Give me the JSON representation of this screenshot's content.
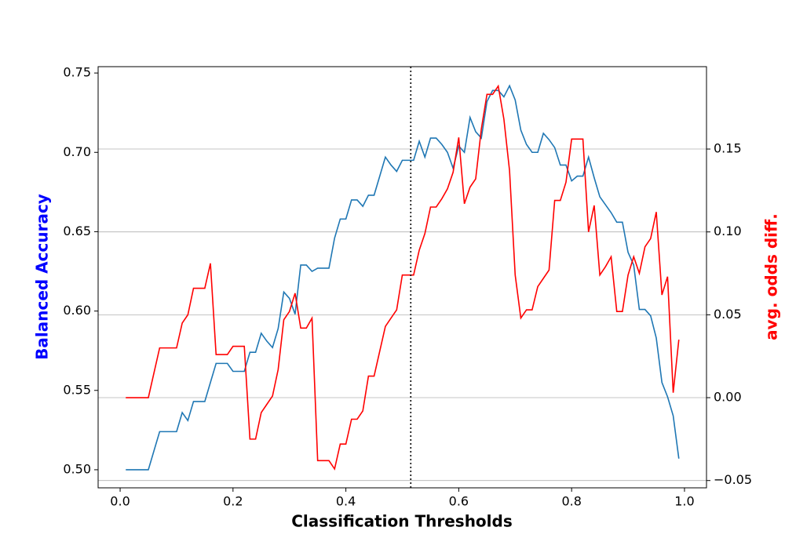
{
  "chart_data": {
    "type": "line",
    "xlabel": "Classification Thresholds",
    "ylabel": "Balanced Accuracy",
    "ylabel_color": "#0000ff",
    "y2label": "avg. odds diff.",
    "y2label_color": "#ff0000",
    "x": [
      0.01,
      0.02,
      0.03,
      0.04,
      0.05,
      0.06,
      0.07,
      0.08,
      0.09,
      0.1,
      0.11,
      0.12,
      0.13,
      0.14,
      0.15,
      0.16,
      0.17,
      0.18,
      0.19,
      0.2,
      0.21,
      0.22,
      0.23,
      0.24,
      0.25,
      0.26,
      0.27,
      0.28,
      0.29,
      0.3,
      0.31,
      0.32,
      0.33,
      0.34,
      0.35,
      0.36,
      0.37,
      0.38,
      0.39,
      0.4,
      0.41,
      0.42,
      0.43,
      0.44,
      0.45,
      0.46,
      0.47,
      0.48,
      0.49,
      0.5,
      0.51,
      0.52,
      0.53,
      0.54,
      0.55,
      0.56,
      0.57,
      0.58,
      0.59,
      0.6,
      0.61,
      0.62,
      0.63,
      0.64,
      0.65,
      0.66,
      0.67,
      0.68,
      0.69,
      0.7,
      0.71,
      0.72,
      0.73,
      0.74,
      0.75,
      0.76,
      0.77,
      0.78,
      0.79,
      0.8,
      0.81,
      0.82,
      0.83,
      0.84,
      0.85,
      0.86,
      0.87,
      0.88,
      0.89,
      0.9,
      0.91,
      0.92,
      0.93,
      0.94,
      0.95,
      0.96,
      0.97,
      0.98,
      0.99
    ],
    "series": [
      {
        "color": "#1f77b4",
        "values": [
          0.5,
          0.5,
          0.5,
          0.5,
          0.5,
          0.512,
          0.524,
          0.524,
          0.524,
          0.524,
          0.536,
          0.531,
          0.543,
          0.543,
          0.543,
          0.555,
          0.567,
          0.567,
          0.567,
          0.562,
          0.562,
          0.562,
          0.574,
          0.574,
          0.586,
          0.581,
          0.577,
          0.589,
          0.612,
          0.608,
          0.598,
          0.629,
          0.629,
          0.625,
          0.627,
          0.627,
          0.627,
          0.646,
          0.658,
          0.658,
          0.67,
          0.67,
          0.666,
          0.673,
          0.673,
          0.685,
          0.697,
          0.692,
          0.688,
          0.695,
          0.695,
          0.695,
          0.707,
          0.697,
          0.709,
          0.709,
          0.705,
          0.7,
          0.69,
          0.704,
          0.7,
          0.722,
          0.713,
          0.709,
          0.732,
          0.739,
          0.739,
          0.735,
          0.742,
          0.733,
          0.714,
          0.705,
          0.7,
          0.7,
          0.712,
          0.708,
          0.703,
          0.692,
          0.692,
          0.682,
          0.685,
          0.685,
          0.697,
          0.684,
          0.672,
          0.667,
          0.662,
          0.656,
          0.656,
          0.637,
          0.629,
          0.601,
          0.601,
          0.597,
          0.583,
          0.555,
          0.546,
          0.534,
          0.507
        ]
      },
      {
        "color": "#ff0000",
        "axis": "y2",
        "values": [
          0,
          0,
          0,
          0,
          0,
          0.015,
          0.03,
          0.03,
          0.03,
          0.03,
          0.045,
          0.05,
          0.066,
          0.066,
          0.066,
          0.081,
          0.026,
          0.026,
          0.026,
          0.031,
          0.031,
          0.031,
          -0.025,
          -0.025,
          -0.009,
          -0.004,
          0.001,
          0.017,
          0.047,
          0.052,
          0.063,
          0.042,
          0.042,
          0.048,
          -0.038,
          -0.038,
          -0.038,
          -0.043,
          -0.028,
          -0.028,
          -0.013,
          -0.013,
          -0.008,
          0.013,
          0.013,
          0.028,
          0.043,
          0.048,
          0.053,
          0.074,
          0.074,
          0.074,
          0.089,
          0.099,
          0.115,
          0.115,
          0.12,
          0.126,
          0.136,
          0.157,
          0.117,
          0.127,
          0.132,
          0.162,
          0.183,
          0.183,
          0.188,
          0.168,
          0.137,
          0.074,
          0.048,
          0.053,
          0.053,
          0.067,
          0.072,
          0.077,
          0.119,
          0.119,
          0.13,
          0.156,
          0.156,
          0.156,
          0.1,
          0.116,
          0.074,
          0.079,
          0.085,
          0.052,
          0.052,
          0.074,
          0.085,
          0.075,
          0.091,
          0.096,
          0.112,
          0.062,
          0.073,
          0.003,
          0.035
        ]
      }
    ],
    "threshold": 0.515,
    "xlim": [
      -0.039,
      1.039
    ],
    "xticks": [
      {
        "value": 0,
        "label": "0.0"
      },
      0.2,
      0.4,
      0.6,
      0.8,
      {
        "value": 1,
        "label": "1.0"
      }
    ],
    "ylim": [
      0.4886,
      0.754
    ],
    "yticks": [
      {
        "value": 0.5,
        "label": "0.50"
      },
      0.55,
      {
        "value": 0.6,
        "label": "0.60"
      },
      0.65,
      {
        "value": 0.7,
        "label": "0.70"
      },
      0.75
    ],
    "y2lim": [
      -0.0544,
      0.1997
    ],
    "y2ticks": [
      {
        "value": -0.05,
        "label": "−0.05"
      },
      {
        "value": 0,
        "label": "0.00"
      },
      0.05,
      {
        "value": 0.1,
        "label": "0.10"
      },
      0.15
    ],
    "grid": "y2"
  }
}
